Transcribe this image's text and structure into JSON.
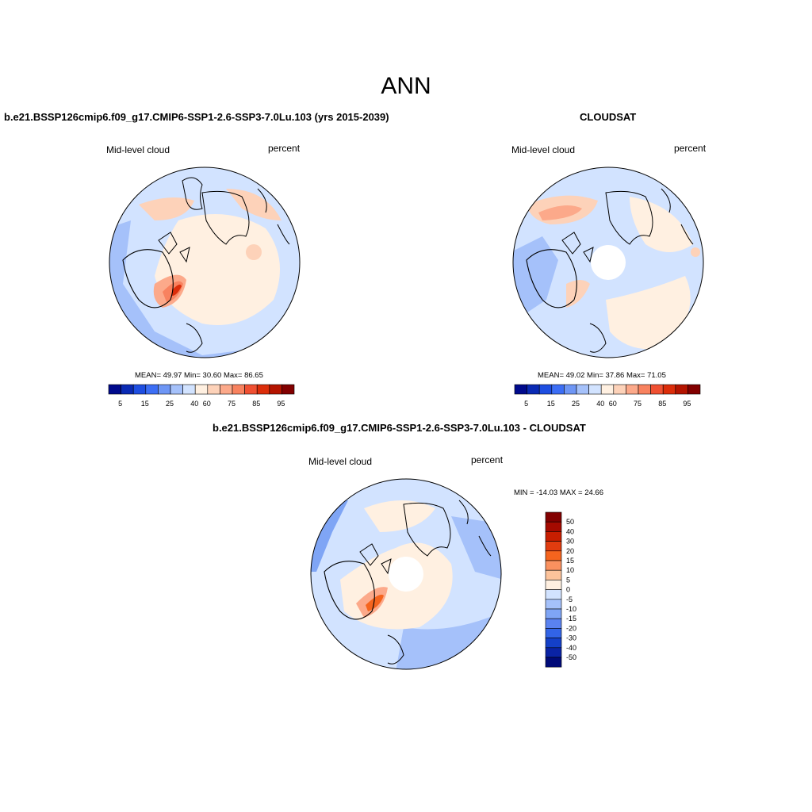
{
  "title": "ANN",
  "panels": [
    {
      "title": "b.e21.BSSP126cmip6.f09_g17.CMIP6-SSP1-2.6-SSP3-7.0Lu.103 (yrs 2015-2039)",
      "left_label": "Mid-level cloud",
      "right_label": "percent",
      "stats": "MEAN=  49.97  Min=  30.60  Max=  86.65",
      "colorbar_ticks": [
        "5",
        "15",
        "25",
        "40",
        "60",
        "75",
        "85",
        "95"
      ]
    },
    {
      "title": "CLOUDSAT",
      "left_label": "Mid-level cloud",
      "right_label": "percent",
      "stats": "MEAN=  49.02  Min=  37.86  Max=  71.05",
      "colorbar_ticks": [
        "5",
        "15",
        "25",
        "40",
        "60",
        "75",
        "85",
        "95"
      ]
    },
    {
      "title": "b.e21.BSSP126cmip6.f09_g17.CMIP6-SSP1-2.6-SSP3-7.0Lu.103 - CLOUDSAT",
      "left_label": "Mid-level cloud",
      "right_label": "percent",
      "stats": "MIN = -14.03 MAX =  24.66",
      "colorbar_ticks": [
        "50",
        "40",
        "30",
        "20",
        "15",
        "10",
        "5",
        "0",
        "-5",
        "-10",
        "-15",
        "-20",
        "-30",
        "-40",
        "-50"
      ]
    }
  ],
  "colors": {
    "abs_scale": [
      "#000a8c",
      "#0a2ab4",
      "#1e4ee1",
      "#3c6ef5",
      "#6e96f5",
      "#a5c1fa",
      "#d2e3ff",
      "#fff0e1",
      "#fdd2b9",
      "#fca98a",
      "#f8825f",
      "#f05032",
      "#dc2d0a",
      "#b41400",
      "#820000"
    ],
    "diff_scale": [
      "#820000",
      "#a50a00",
      "#c81e00",
      "#e13c0f",
      "#f5641e",
      "#fa915f",
      "#fcc39b",
      "#fff0e1",
      "#d2e3ff",
      "#a5c1fa",
      "#7fa5f5",
      "#5a82f0",
      "#3264e6",
      "#1440c8",
      "#0a23a5",
      "#000a78"
    ]
  }
}
